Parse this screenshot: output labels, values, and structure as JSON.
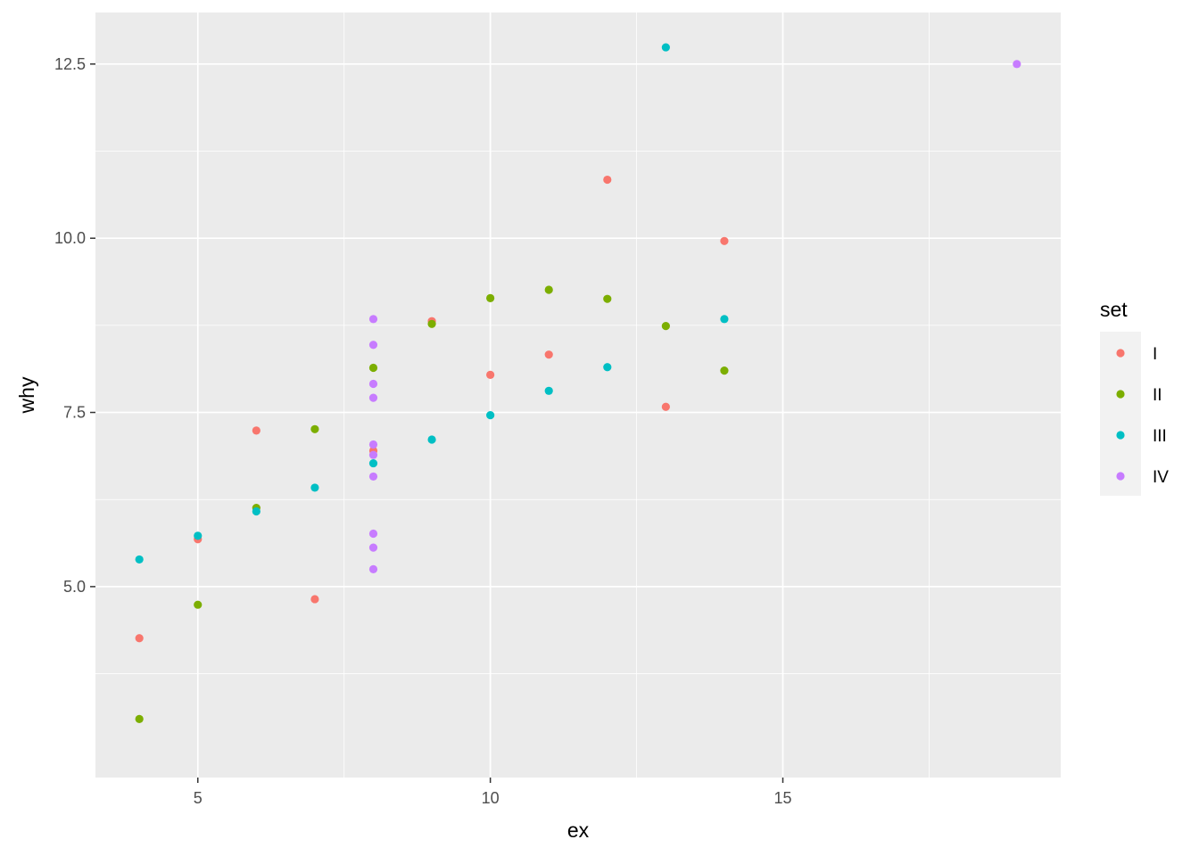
{
  "chart_data": {
    "type": "scatter",
    "title": "",
    "xlabel": "ex",
    "ylabel": "why",
    "xlim": [
      3.25,
      19.75
    ],
    "ylim": [
      2.26,
      13.24
    ],
    "x_ticks": [
      5,
      10,
      15
    ],
    "x_tick_labels": [
      "5",
      "10",
      "15"
    ],
    "y_ticks": [
      5.0,
      7.5,
      10.0,
      12.5
    ],
    "y_tick_labels": [
      "5.0",
      "7.5",
      "10.0",
      "12.5"
    ],
    "grid": true,
    "legend": {
      "title": "set",
      "position": "right"
    },
    "series": [
      {
        "name": "I",
        "color": "#F8766D",
        "x": [
          10,
          8,
          13,
          9,
          11,
          14,
          6,
          4,
          12,
          7,
          5
        ],
        "y": [
          8.04,
          6.95,
          7.58,
          8.81,
          8.33,
          9.96,
          7.24,
          4.26,
          10.84,
          4.82,
          5.68
        ]
      },
      {
        "name": "II",
        "color": "#7CAE00",
        "x": [
          10,
          8,
          13,
          9,
          11,
          14,
          6,
          4,
          12,
          7,
          5
        ],
        "y": [
          9.14,
          8.14,
          8.74,
          8.77,
          9.26,
          8.1,
          6.13,
          3.1,
          9.13,
          7.26,
          4.74
        ]
      },
      {
        "name": "III",
        "color": "#00BFC4",
        "x": [
          10,
          8,
          13,
          9,
          11,
          14,
          6,
          4,
          12,
          7,
          5
        ],
        "y": [
          7.46,
          6.77,
          12.74,
          7.11,
          7.81,
          8.84,
          6.08,
          5.39,
          8.15,
          6.42,
          5.73
        ]
      },
      {
        "name": "IV",
        "color": "#C77CFF",
        "x": [
          8,
          8,
          8,
          8,
          8,
          8,
          8,
          19,
          8,
          8,
          8
        ],
        "y": [
          6.58,
          5.76,
          7.71,
          8.84,
          8.47,
          7.04,
          5.25,
          12.5,
          5.56,
          7.91,
          6.89
        ]
      }
    ]
  }
}
